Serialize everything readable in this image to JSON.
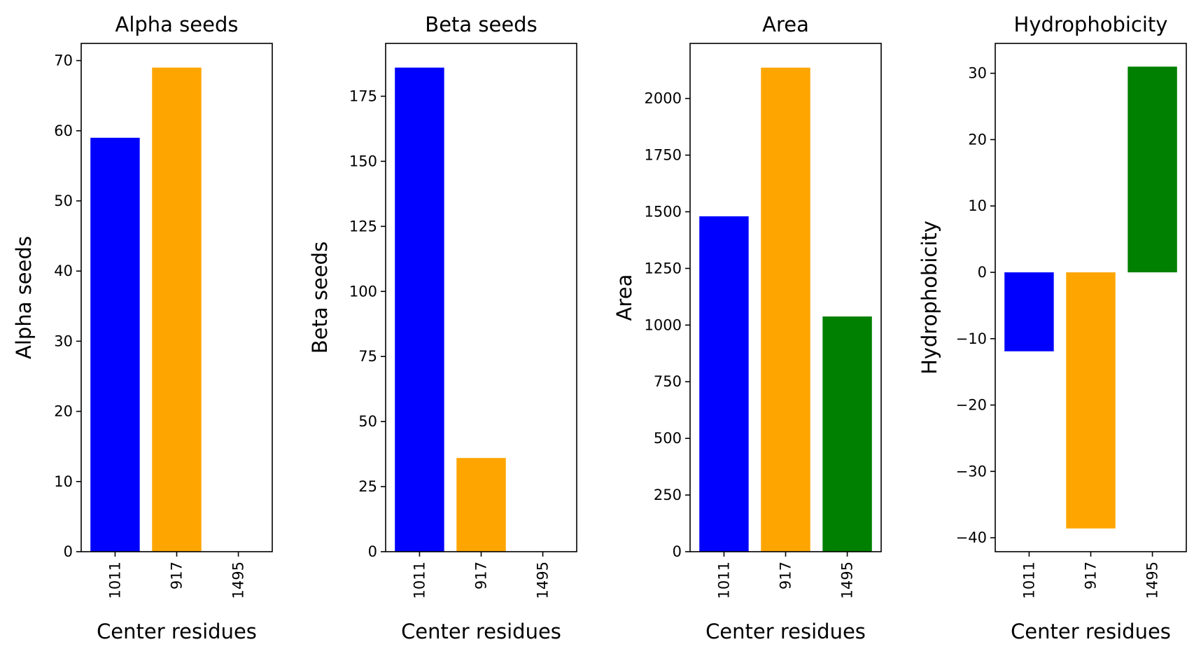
{
  "chart_data": [
    {
      "type": "bar",
      "title": "Alpha seeds",
      "xlabel": "Center residues",
      "ylabel": "Alpha seeds",
      "categories": [
        "1011",
        "917",
        "1495"
      ],
      "values": [
        59,
        69,
        0
      ],
      "ylim": [
        0,
        72.45
      ],
      "yticks": [
        0,
        10,
        20,
        30,
        40,
        50,
        60,
        70
      ],
      "yticklabels": [
        "0",
        "10",
        "20",
        "30",
        "40",
        "50",
        "60",
        "70"
      ],
      "grid": false,
      "legend": "none"
    },
    {
      "type": "bar",
      "title": "Beta seeds",
      "xlabel": "Center residues",
      "ylabel": "Beta seeds",
      "categories": [
        "1011",
        "917",
        "1495"
      ],
      "values": [
        186,
        36,
        0
      ],
      "ylim": [
        0,
        195.3
      ],
      "yticks": [
        0,
        25,
        50,
        75,
        100,
        125,
        150,
        175
      ],
      "yticklabels": [
        "0",
        "25",
        "50",
        "75",
        "100",
        "125",
        "150",
        "175"
      ],
      "grid": false,
      "legend": "none"
    },
    {
      "type": "bar",
      "title": "Area",
      "xlabel": "Center residues",
      "ylabel": "Area",
      "categories": [
        "1011",
        "917",
        "1495"
      ],
      "values": [
        1480,
        2136,
        1038
      ],
      "ylim": [
        0,
        2243
      ],
      "yticks": [
        0,
        250,
        500,
        750,
        1000,
        1250,
        1500,
        1750,
        2000
      ],
      "yticklabels": [
        "0",
        "250",
        "500",
        "750",
        "1000",
        "1250",
        "1500",
        "1750",
        "2000"
      ],
      "grid": false,
      "legend": "none"
    },
    {
      "type": "bar",
      "title": "Hydrophobicity",
      "xlabel": "Center residues",
      "ylabel": "Hydrophobicity",
      "categories": [
        "1011",
        "917",
        "1495"
      ],
      "values": [
        -11.9,
        -38.6,
        31.0
      ],
      "ylim": [
        -42.1,
        34.5
      ],
      "yticks": [
        -40,
        -30,
        -20,
        -10,
        0,
        10,
        20,
        30
      ],
      "yticklabels": [
        "−40",
        "−30",
        "−20",
        "−10",
        "0",
        "10",
        "20",
        "30"
      ],
      "grid": false,
      "legend": "none"
    }
  ],
  "colors": {
    "bars": [
      "#0000ff",
      "#ffa500",
      "#008000"
    ],
    "axes": "#000000",
    "background": "#ffffff"
  }
}
